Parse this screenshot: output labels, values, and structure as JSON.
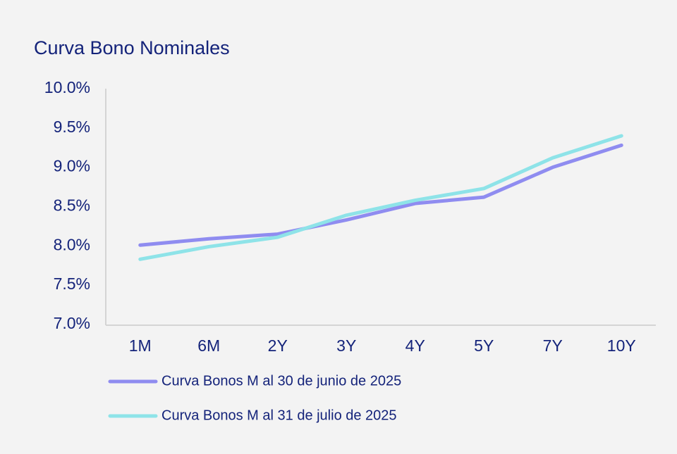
{
  "chart_data": {
    "type": "line",
    "title": "Curva Bono Nominales",
    "categories": [
      "1M",
      "6M",
      "2Y",
      "3Y",
      "4Y",
      "5Y",
      "7Y",
      "10Y"
    ],
    "series": [
      {
        "name": "Curva Bonos M al 30 de junio de 2025",
        "color": "#8f8cf0",
        "values": [
          8.01,
          8.09,
          8.15,
          8.33,
          8.54,
          8.62,
          9.0,
          9.28
        ]
      },
      {
        "name": "Curva Bonos M al 31 de julio de 2025",
        "color": "#8ee3e8",
        "values": [
          7.83,
          7.99,
          8.11,
          8.39,
          8.58,
          8.73,
          9.12,
          9.4
        ]
      }
    ],
    "ylim": [
      7.0,
      10.0
    ],
    "yticks": [
      {
        "value": 7.0,
        "label": "7.0%"
      },
      {
        "value": 7.5,
        "label": "7.5%"
      },
      {
        "value": 8.0,
        "label": "8.0%"
      },
      {
        "value": 8.5,
        "label": "8.5%"
      },
      {
        "value": 9.0,
        "label": "9.0%"
      },
      {
        "value": 9.5,
        "label": "9.5%"
      },
      {
        "value": 10.0,
        "label": "10.0%"
      }
    ],
    "grid": false
  }
}
